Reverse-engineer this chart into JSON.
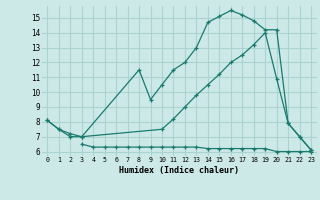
{
  "xlabel": "Humidex (Indice chaleur)",
  "bg_color": "#cce9e8",
  "grid_color": "#aad4d2",
  "line_color": "#1a7a6e",
  "xlim": [
    -0.5,
    23.5
  ],
  "ylim": [
    5.7,
    15.8
  ],
  "yticks": [
    6,
    7,
    8,
    9,
    10,
    11,
    12,
    13,
    14,
    15
  ],
  "xticks": [
    0,
    1,
    2,
    3,
    4,
    5,
    6,
    7,
    8,
    9,
    10,
    11,
    12,
    13,
    14,
    15,
    16,
    17,
    18,
    19,
    20,
    21,
    22,
    23
  ],
  "line1_x": [
    0,
    1,
    2,
    3,
    8,
    9,
    10,
    11,
    12,
    13,
    14,
    15,
    16,
    17,
    18,
    19,
    20,
    21,
    22,
    23
  ],
  "line1_y": [
    8.1,
    7.5,
    7.0,
    7.0,
    11.5,
    9.5,
    10.5,
    11.5,
    12.0,
    13.0,
    14.7,
    15.1,
    15.5,
    15.2,
    14.8,
    14.2,
    14.2,
    7.9,
    7.0,
    6.1
  ],
  "line2_x": [
    0,
    1,
    2,
    3,
    10,
    11,
    12,
    13,
    14,
    15,
    16,
    17,
    18,
    19,
    20,
    21,
    22,
    23
  ],
  "line2_y": [
    8.1,
    7.5,
    7.2,
    7.0,
    7.5,
    8.2,
    9.0,
    9.8,
    10.5,
    11.2,
    12.0,
    12.5,
    13.2,
    14.0,
    10.9,
    7.9,
    7.0,
    6.1
  ],
  "line3_x": [
    3,
    4,
    5,
    6,
    7,
    8,
    9,
    10,
    11,
    12,
    13,
    14,
    15,
    16,
    17,
    18,
    19,
    20,
    21,
    22,
    23
  ],
  "line3_y": [
    6.5,
    6.3,
    6.3,
    6.3,
    6.3,
    6.3,
    6.3,
    6.3,
    6.3,
    6.3,
    6.3,
    6.2,
    6.2,
    6.2,
    6.2,
    6.2,
    6.2,
    6.0,
    6.0,
    6.0,
    6.0
  ]
}
